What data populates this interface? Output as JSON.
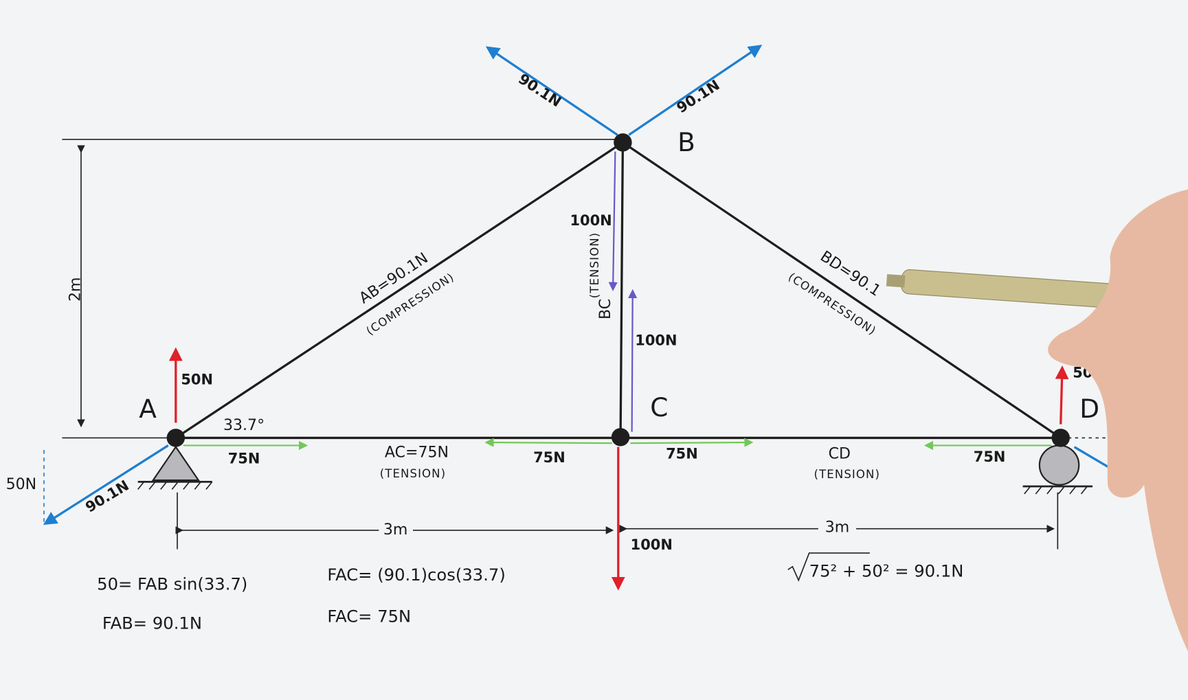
{
  "nodes": [
    {
      "label": "A"
    },
    {
      "label": "B"
    },
    {
      "label": "C"
    },
    {
      "label": "D"
    }
  ],
  "members": {
    "AB": {
      "label": "AB=90.1N",
      "note": "(COMPRESSION)"
    },
    "BD": {
      "label": "BD=90.1",
      "note": "(COMPRESSION)"
    },
    "AC": {
      "label": "AC=75N",
      "note": "(TENSION)"
    },
    "CD": {
      "label": "CD",
      "note": "(TENSION)"
    },
    "BC": {
      "label": "BC",
      "note": "(TENSION)"
    }
  },
  "forces": {
    "b_left": "90.1N",
    "b_right": "90.1N",
    "bc_down": "100N",
    "bc_up": "100N",
    "a_reaction": "50N",
    "d_reaction": "50N",
    "a_right": "75N",
    "c_left": "75N",
    "c_right": "75N",
    "d_left": "75N",
    "load": "100N",
    "a_diagonal": "90.1N",
    "a_vertical_component": "50N"
  },
  "dimensions": {
    "height": "2m",
    "left_span": "3m",
    "right_span": "3m"
  },
  "angle": "33.7°",
  "equations": {
    "eq1": "50= FAB sin(33.7)",
    "eq2": "FAB= 90.1N",
    "eq3": "FAC= (90.1)cos(33.7)",
    "eq4": "FAC= 75N",
    "eq5": "75² + 50² = 90.1N"
  }
}
